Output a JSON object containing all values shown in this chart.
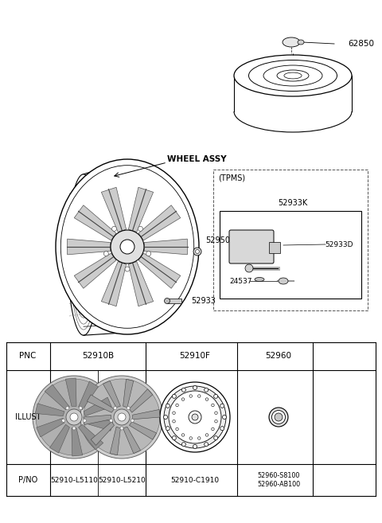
{
  "bg_color": "#ffffff",
  "line_color": "#000000",
  "labels": {
    "wheel_assy": "WHEEL ASSY",
    "tpms": "(TPMS)",
    "part_62850": "62850",
    "part_52950": "52950",
    "part_52933": "52933",
    "part_52933K": "52933K",
    "part_52933D": "52933D",
    "part_24537": "24537"
  },
  "table_pnc": [
    "PNC",
    "52910B",
    "52910F",
    "52960"
  ],
  "table_illust": [
    "ILLUST",
    "",
    "",
    ""
  ],
  "table_pno": [
    "P/NO",
    "52910-L5110\n52910-L5210",
    "52910-C1910",
    "52960-S8100\n52960-AB100"
  ]
}
